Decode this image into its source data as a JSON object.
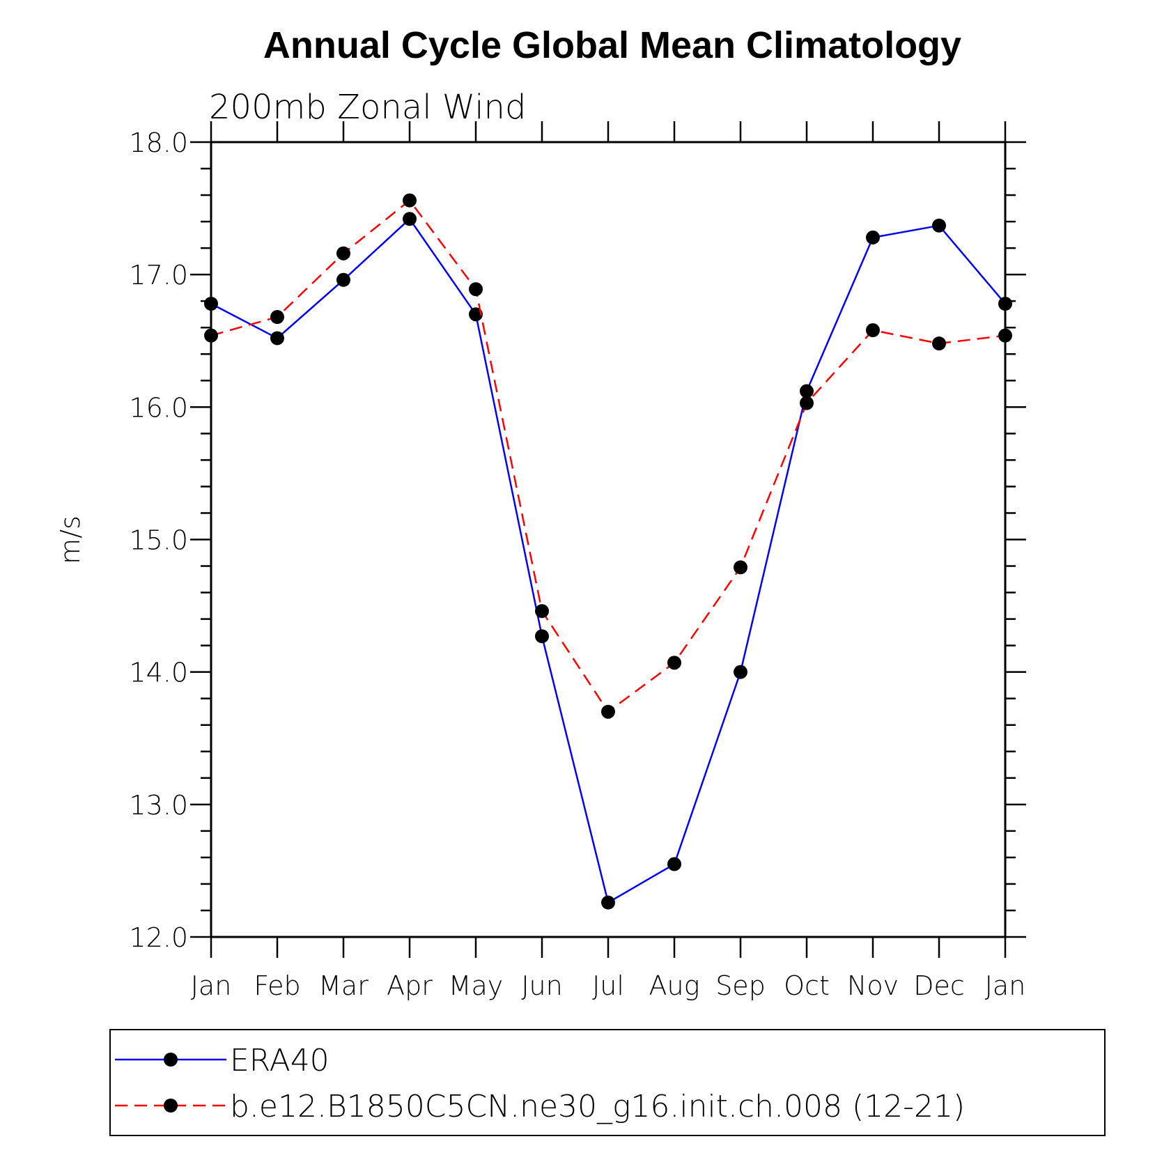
{
  "chart_data": {
    "type": "line",
    "title": "Annual Cycle Global Mean Climatology",
    "subtitle": "200mb Zonal Wind",
    "xlabel": "",
    "ylabel": "m/s",
    "ylim": [
      12.0,
      18.0
    ],
    "y_major_ticks": [
      "12.0",
      "13.0",
      "14.0",
      "15.0",
      "16.0",
      "17.0",
      "18.0"
    ],
    "y_minor_step": 0.2,
    "categories": [
      "Jan",
      "Feb",
      "Mar",
      "Apr",
      "May",
      "Jun",
      "Jul",
      "Aug",
      "Sep",
      "Oct",
      "Nov",
      "Dec",
      "Jan"
    ],
    "grid": false,
    "legend_position": "bottom",
    "series": [
      {
        "name": "ERA40",
        "color": "#0000ff",
        "style": "solid",
        "marker": "filled-circle",
        "values": [
          16.78,
          16.52,
          16.96,
          17.42,
          16.7,
          14.27,
          12.26,
          12.55,
          14.0,
          16.12,
          17.28,
          17.37,
          16.78
        ]
      },
      {
        "name": "b.e12.B1850C5CN.ne30_g16.init.ch.008 (12-21)",
        "color": "#ff0000",
        "style": "dashed",
        "marker": "filled-circle",
        "values": [
          16.54,
          16.68,
          17.16,
          17.56,
          16.89,
          14.46,
          13.7,
          14.07,
          14.79,
          16.03,
          16.58,
          16.48,
          16.54
        ]
      }
    ]
  }
}
